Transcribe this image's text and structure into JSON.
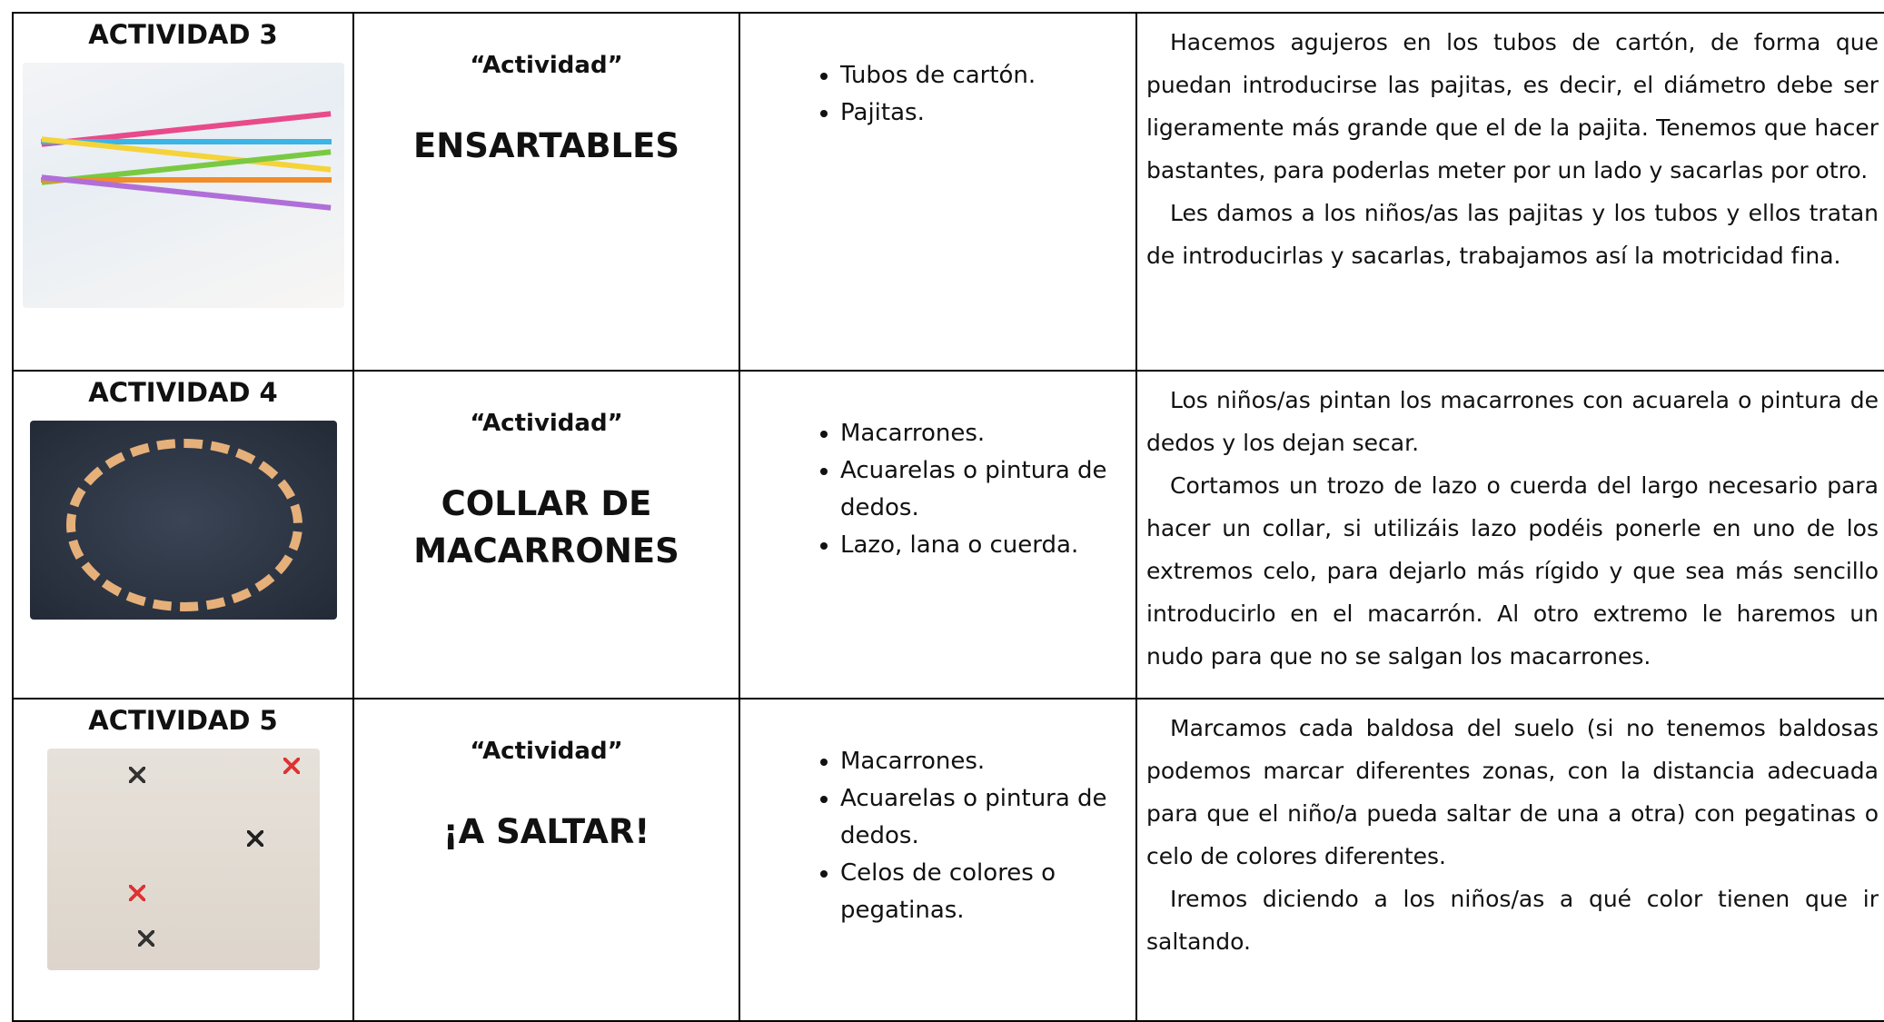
{
  "table": {
    "rows": [
      {
        "activity": "ACTIVIDAD 3",
        "label": "“Actividad”",
        "title": "ENSARTABLES",
        "materials": [
          "Tubos de cartón.",
          "Pajitas."
        ],
        "description": [
          "Hacemos agujeros en los tubos de cartón, de forma que puedan introducirse las pajitas, es decir, el diámetro debe ser ligeramente más grande que el de la pajita. Tenemos que hacer bastantes, para poderlas meter por un lado y sacarlas por otro.",
          "Les damos a los niños/as las pajitas y los tubos y ellos tratan de introducirlas y sacarlas, trabajamos así la motricidad fina."
        ]
      },
      {
        "activity": "ACTIVIDAD 4",
        "label": "“Actividad”",
        "title": "COLLAR DE MACARRONES",
        "materials": [
          "Macarrones.",
          "Acuarelas o pintura de dedos.",
          "Lazo, lana o cuerda."
        ],
        "description": [
          "Los niños/as pintan los macarrones con acuarela o pintura de dedos y los dejan secar.",
          "Cortamos un trozo de lazo o cuerda del largo necesario para hacer un collar, si utilizáis lazo podéis ponerle en uno de los extremos celo, para dejarlo más rígido y que sea más sencillo introducirlo en el macarrón. Al otro extremo le haremos un nudo para que no se salgan los macarrones."
        ]
      },
      {
        "activity": "ACTIVIDAD 5",
        "label": "“Actividad”",
        "title": "¡A SALTAR!",
        "materials": [
          "Macarrones.",
          "Acuarelas o pintura de dedos.",
          "Celos de colores o pegatinas."
        ],
        "description": [
          "Marcamos cada baldosa del suelo (si no tenemos baldosas podemos marcar diferentes zonas, con la distancia adecuada para que el niño/a pueda saltar de una a otra) con pegatinas o celo de colores diferentes.",
          "Iremos diciendo a los niños/as a qué color tienen que ir saltando."
        ]
      }
    ]
  }
}
